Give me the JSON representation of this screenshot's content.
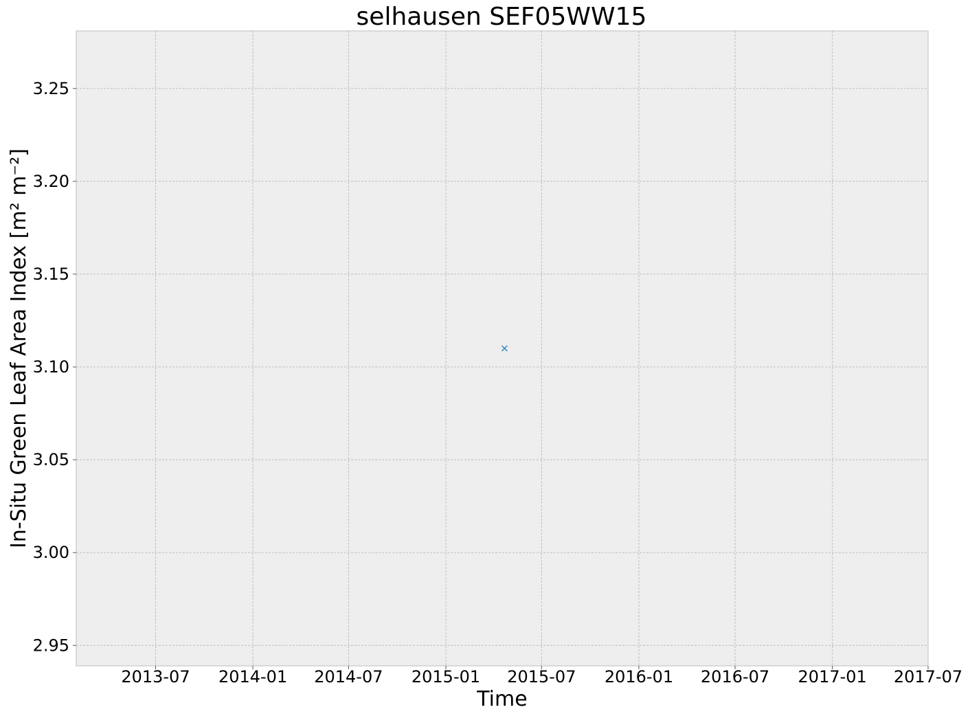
{
  "chart_data": {
    "type": "scatter",
    "title": "selhausen SEF05WW15",
    "xlabel": "Time",
    "ylabel": "In-Situ Green Leaf Area Index [m² m⁻²]",
    "xlim": [
      "2013-02-01",
      "2017-07-01"
    ],
    "ylim": [
      2.939,
      3.281
    ],
    "x_ticks": [
      "2013-07",
      "2014-01",
      "2014-07",
      "2015-01",
      "2015-07",
      "2016-01",
      "2016-07",
      "2017-01",
      "2017-07"
    ],
    "y_ticks": [
      "2.95",
      "3.00",
      "3.05",
      "3.10",
      "3.15",
      "3.20",
      "3.25"
    ],
    "grid": true,
    "series": [
      {
        "marker": "x",
        "color": "#348abd",
        "x": [
          "2015-04-22"
        ],
        "y": [
          3.11
        ]
      }
    ]
  }
}
